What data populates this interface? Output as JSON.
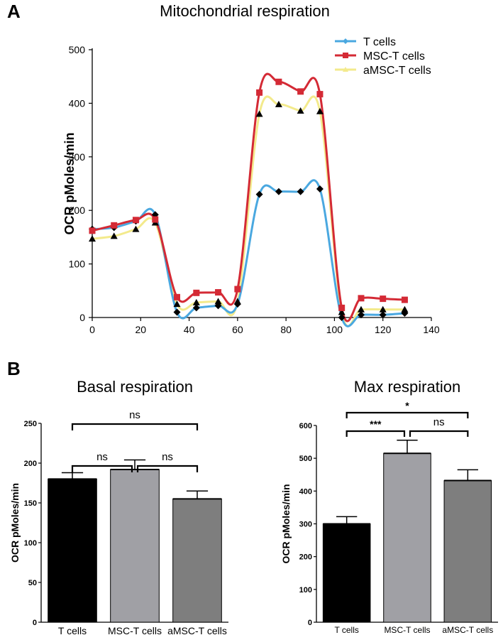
{
  "panels": {
    "a": "A",
    "b": "B"
  },
  "chart_data": [
    {
      "type": "line",
      "title": "Mitochondrial respiration",
      "xlabel": "",
      "ylabel": "OCR pMoles/min",
      "xlim": [
        0,
        140
      ],
      "ylim": [
        0,
        500
      ],
      "xticks": [
        "0",
        "20",
        "40",
        "60",
        "80",
        "100",
        "120",
        "140"
      ],
      "yticks": [
        "0",
        "100",
        "200",
        "300",
        "400",
        "500"
      ],
      "legend_position": "top-right",
      "x": [
        0,
        9,
        18,
        26,
        35,
        43,
        52,
        60,
        69,
        77,
        86,
        94,
        103,
        111,
        120,
        129
      ],
      "series": [
        {
          "name": "T cells",
          "color": "#4aa8e0",
          "marker_color": "#000000",
          "marker": "diamond",
          "values": [
            165,
            168,
            180,
            192,
            10,
            18,
            22,
            25,
            230,
            235,
            235,
            240,
            0,
            5,
            5,
            8
          ]
        },
        {
          "name": "MSC-T cells",
          "color": "#d42a35",
          "marker_color": "#d42a35",
          "marker": "square",
          "values": [
            162,
            172,
            182,
            183,
            38,
            46,
            47,
            53,
            420,
            440,
            422,
            417,
            18,
            36,
            35,
            33
          ]
        },
        {
          "name": "aMSC-T cells",
          "color": "#f3ea8c",
          "marker_color": "#000000",
          "marker": "triangle",
          "values": [
            147,
            152,
            165,
            177,
            25,
            28,
            30,
            30,
            380,
            398,
            386,
            385,
            10,
            15,
            15,
            15
          ]
        }
      ]
    },
    {
      "type": "bar",
      "title": "Basal respiration",
      "ylabel": "OCR pMoles/min",
      "ylim": [
        0,
        250
      ],
      "yticks": [
        "0",
        "50",
        "100",
        "150",
        "200",
        "250"
      ],
      "categories": [
        "T cells",
        "MSC-T cells",
        "aMSC-T cells"
      ],
      "values": [
        180,
        192,
        155
      ],
      "errors": [
        8,
        12,
        10
      ],
      "colors": [
        "#000000",
        "#a0a0a5",
        "#7e7e7e"
      ],
      "significance": [
        {
          "from": 0,
          "to": 2,
          "label": "ns"
        },
        {
          "from": 0,
          "to": 1,
          "label": "ns"
        },
        {
          "from": 1,
          "to": 2,
          "label": "ns"
        }
      ]
    },
    {
      "type": "bar",
      "title": "Max respiration",
      "ylabel": "OCR pMoles/min",
      "ylim": [
        0,
        600
      ],
      "yticks": [
        "0",
        "100",
        "200",
        "300",
        "400",
        "500",
        "600"
      ],
      "categories": [
        "T cells",
        "MSC-T cells",
        "aMSC-T cells"
      ],
      "values": [
        300,
        515,
        432
      ],
      "errors": [
        22,
        40,
        33
      ],
      "colors": [
        "#000000",
        "#a0a0a5",
        "#7e7e7e"
      ],
      "significance": [
        {
          "from": 0,
          "to": 2,
          "label": "*"
        },
        {
          "from": 0,
          "to": 1,
          "label": "***"
        },
        {
          "from": 1,
          "to": 2,
          "label": "ns"
        }
      ]
    }
  ]
}
